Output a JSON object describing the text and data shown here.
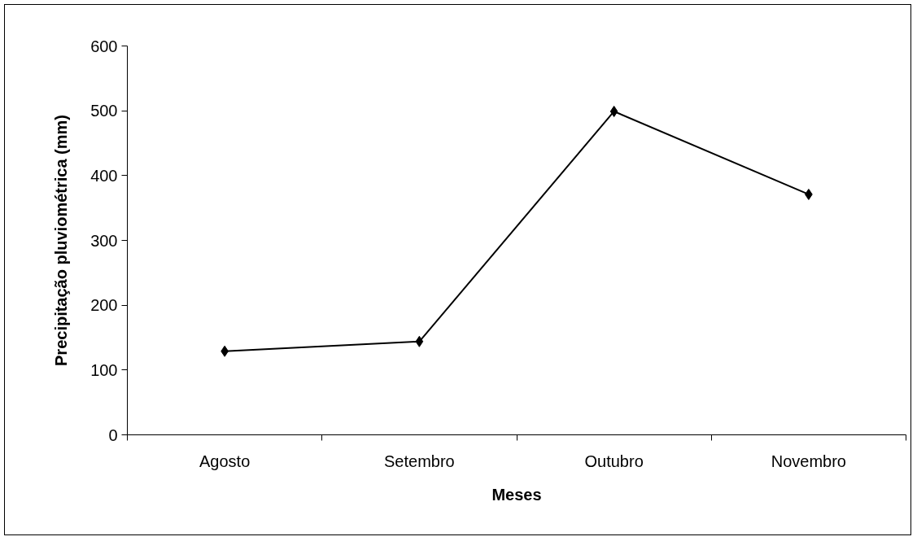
{
  "chart_data": {
    "type": "line",
    "xlabel": "Meses",
    "ylabel": "Precipitação pluviométrica (mm)",
    "categories": [
      "Agosto",
      "Setembro",
      "Outubro",
      "Novembro"
    ],
    "series": [
      {
        "color": "#000000",
        "values": [
          129,
          144,
          499,
          371
        ]
      }
    ],
    "ylim": [
      0,
      600
    ],
    "yticks": [
      0,
      100,
      200,
      300,
      400,
      500,
      600
    ],
    "grid": false,
    "marker": "diamond",
    "line_style": "solid"
  }
}
